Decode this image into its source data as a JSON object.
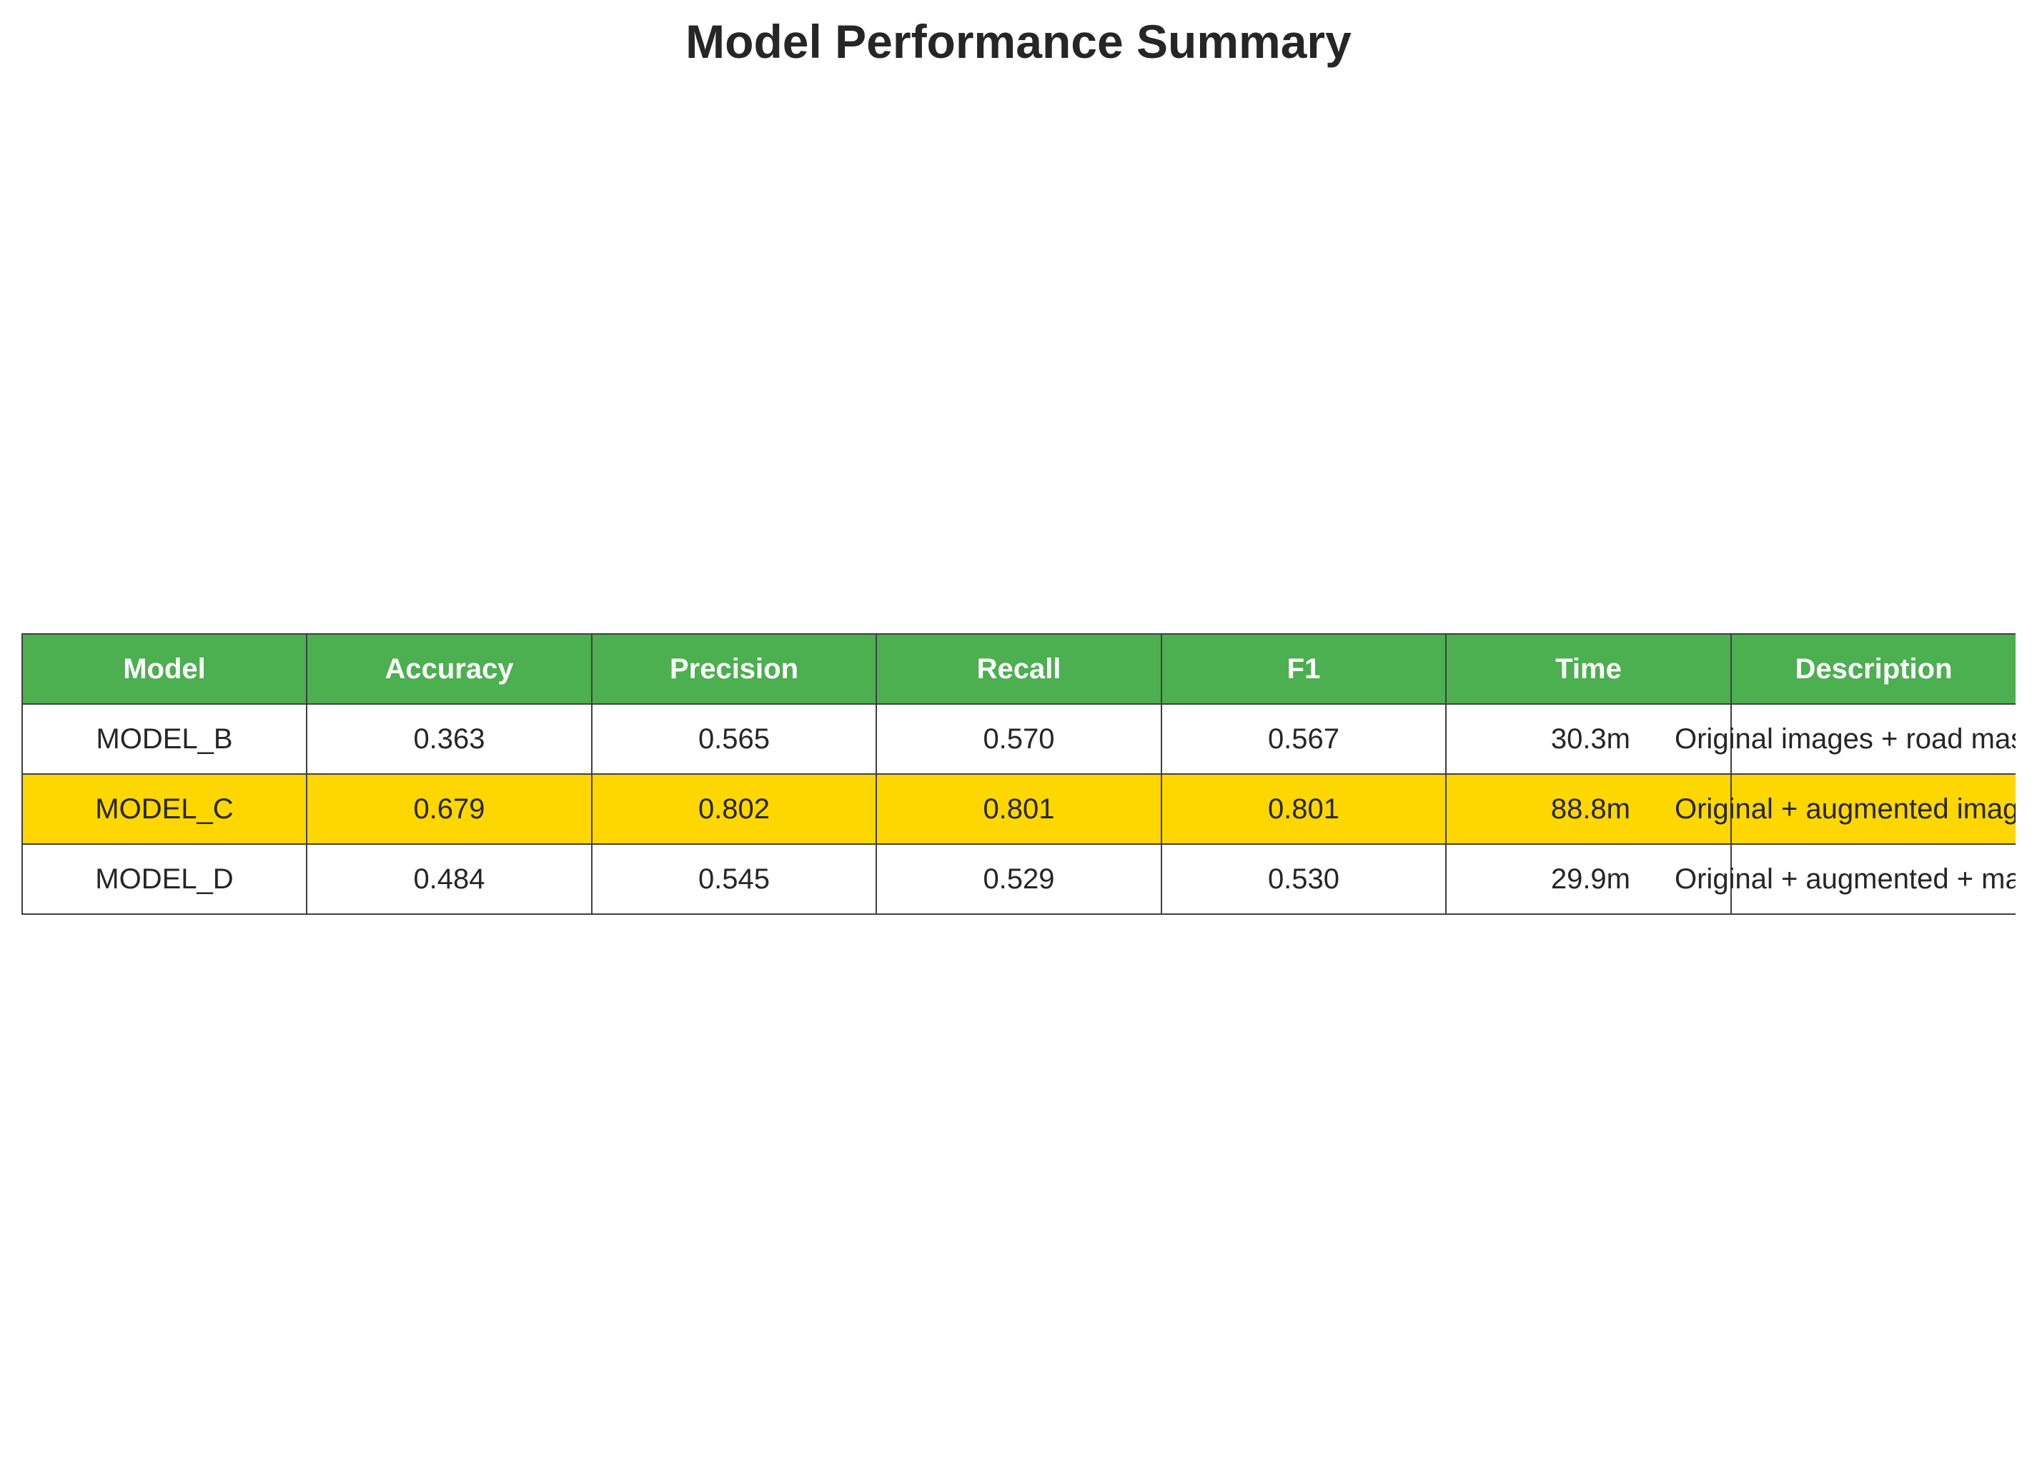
{
  "title": "Model Performance Summary",
  "colors": {
    "header_bg": "#4caf50",
    "header_text": "#ffffff",
    "highlight_row": "#ffd700",
    "border": "#404040"
  },
  "chart_data": {
    "type": "table",
    "title": "Model Performance Summary",
    "columns": [
      "Model",
      "Accuracy",
      "Precision",
      "Recall",
      "F1",
      "Time",
      "Description"
    ],
    "rows": [
      {
        "model": "MODEL_B",
        "accuracy": "0.363",
        "precision": "0.565",
        "recall": "0.570",
        "f1": "0.567",
        "time": "30.3m",
        "description": "Original images + road mas",
        "highlighted": false
      },
      {
        "model": "MODEL_C",
        "accuracy": "0.679",
        "precision": "0.802",
        "recall": "0.801",
        "f1": "0.801",
        "time": "88.8m",
        "description": "Original + augmented imag",
        "highlighted": true
      },
      {
        "model": "MODEL_D",
        "accuracy": "0.484",
        "precision": "0.545",
        "recall": "0.529",
        "f1": "0.530",
        "time": "29.9m",
        "description": "Original + augmented + mas",
        "highlighted": false
      }
    ]
  }
}
